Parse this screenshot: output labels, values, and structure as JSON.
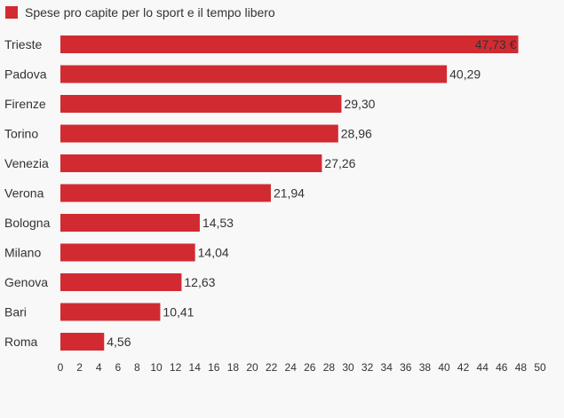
{
  "colors": {
    "bar": "#d12b31",
    "background": "#f8f8f8",
    "text": "#333333"
  },
  "chart_data": {
    "type": "bar",
    "orientation": "horizontal",
    "title": "",
    "legend": {
      "label": "Spese pro capite per lo sport e il tempo libero",
      "placement": "top-left"
    },
    "categories": [
      "Trieste",
      "Padova",
      "Firenze",
      "Torino",
      "Venezia",
      "Verona",
      "Bologna",
      "Milano",
      "Genova",
      "Bari",
      "Roma"
    ],
    "series": [
      {
        "name": "Spese pro capite per lo sport e il tempo libero",
        "values": [
          47.73,
          40.29,
          29.3,
          28.96,
          27.26,
          21.94,
          14.53,
          14.04,
          12.63,
          10.41,
          4.56
        ]
      }
    ],
    "value_labels": [
      "47,73 €",
      "40,29",
      "29,30",
      "28,96",
      "27,26",
      "21,94",
      "14,53",
      "14,04",
      "12,63",
      "10,41",
      "4,56"
    ],
    "xlim": [
      0,
      50
    ],
    "xticks": [
      "0",
      "2",
      "4",
      "6",
      "8",
      "10",
      "12",
      "14",
      "16",
      "18",
      "20",
      "22",
      "24",
      "26",
      "28",
      "30",
      "32",
      "34",
      "36",
      "38",
      "40",
      "42",
      "44",
      "46",
      "48",
      "50"
    ],
    "grid": false
  }
}
